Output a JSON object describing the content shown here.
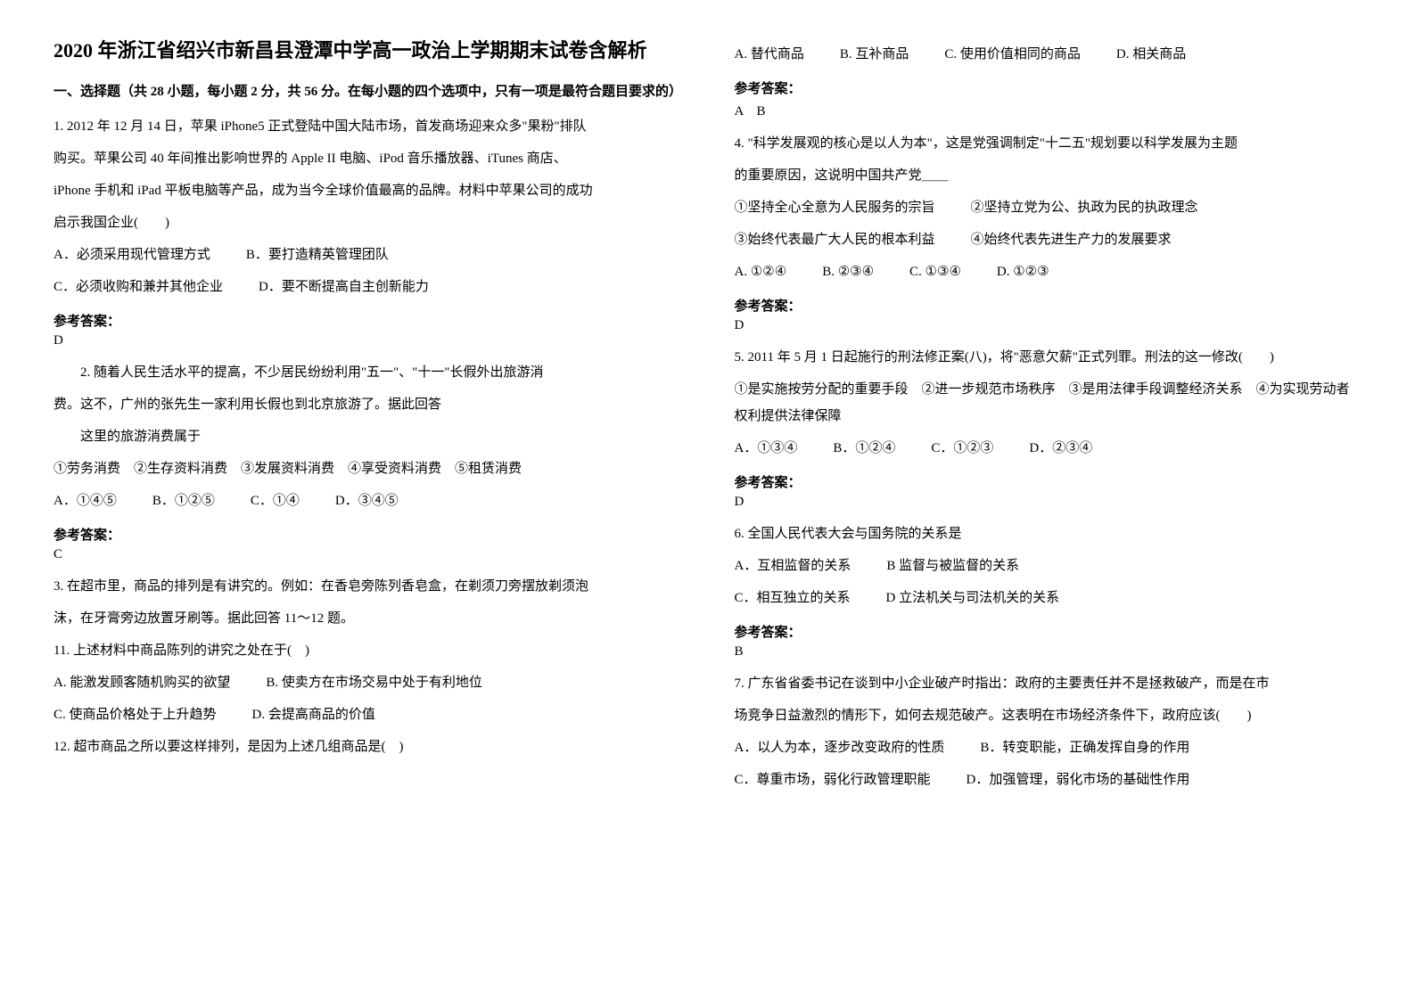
{
  "title": "2020 年浙江省绍兴市新昌县澄潭中学高一政治上学期期末试卷含解析",
  "section1_head": "一、选择题（共 28 小题，每小题 2 分，共 56 分。在每小题的四个选项中，只有一项是最符合题目要求的）",
  "q1": {
    "stem_l1": "1. 2012 年 12 月 14 日，苹果 iPhone5 正式登陆中国大陆市场，首发商场迎来众多\"果粉\"排队",
    "stem_l2": "购买。苹果公司 40 年间推出影响世界的 Apple II 电脑、iPod 音乐播放器、iTunes 商店、",
    "stem_l3": "iPhone 手机和 iPad 平板电脑等产品，成为当今全球价值最高的品牌。材料中苹果公司的成功",
    "stem_l4": "启示我国企业(　　)",
    "optA": "A．必须采用现代管理方式",
    "optB": "B．要打造精英管理团队",
    "optC": "C．必须收购和兼并其他企业",
    "optD": "D．要不断提高自主创新能力",
    "ans_label": "参考答案：",
    "ans": "D"
  },
  "q2": {
    "stem_l1": "2. 随着人民生活水平的提高，不少居民纷纷利用\"五一\"、\"十一\"长假外出旅游消",
    "stem_l2": "费。这不，广州的张先生一家利用长假也到北京旅游了。据此回答",
    "sub": "这里的旅游消费属于",
    "items": "①劳务消费　②生存资料消费　③发展资料消费　④享受资料消费　⑤租赁消费",
    "optA": "A．①④⑤",
    "optB": "B．①②⑤",
    "optC": "C．①④",
    "optD": "D．③④⑤",
    "ans_label": "参考答案：",
    "ans": "C"
  },
  "q3": {
    "stem_l1": "3. 在超市里，商品的排列是有讲究的。例如：在香皂旁陈列香皂盒，在剃须刀旁摆放剃须泡",
    "stem_l2": "沫，在牙膏旁边放置牙刷等。据此回答 11～12 题。",
    "q11_stem": "11. 上述材料中商品陈列的讲究之处在于(　)",
    "q11_A": "A. 能激发顾客随机购买的欲望",
    "q11_B": "B. 使卖方在市场交易中处于有利地位",
    "q11_C": "C. 使商品价格处于上升趋势",
    "q11_D": "D. 会提高商品的价值",
    "q12_stem": "12. 超市商品之所以要这样排列，是因为上述几组商品是(　)",
    "q12_A": "A. 替代商品",
    "q12_B": "B. 互补商品",
    "q12_C": "C. 使用价值相同的商品",
    "q12_D": "D. 相关商品",
    "ans_label": "参考答案：",
    "ans": "A　B"
  },
  "q4": {
    "stem_l1": "4. \"科学发展观的核心是以人为本\"，这是党强调制定\"十二五\"规划要以科学发展为主题",
    "stem_l2": "的重要原因，这说明中国共产党＿＿",
    "i1": "①坚持全心全意为人民服务的宗旨",
    "i2": "②坚持立党为公、执政为民的执政理念",
    "i3": "③始终代表最广大人民的根本利益",
    "i4": "④始终代表先进生产力的发展要求",
    "optA": "A. ①②④",
    "optB": "B. ②③④",
    "optC": "C. ①③④",
    "optD": "D. ①②③",
    "ans_label": "参考答案：",
    "ans": "D"
  },
  "q5": {
    "stem": "5. 2011 年 5 月 1 日起施行的刑法修正案(八)，将\"恶意欠薪\"正式列罪。刑法的这一修改(　　)",
    "items": "①是实施按劳分配的重要手段　②进一步规范市场秩序　③是用法律手段调整经济关系　④为实现劳动者权利提供法律保障",
    "optA": "A．①③④",
    "optB": "B．①②④",
    "optC": "C．①②③",
    "optD": "D．②③④",
    "ans_label": "参考答案：",
    "ans": "D"
  },
  "q6": {
    "stem": "6. 全国人民代表大会与国务院的关系是",
    "optA": "A．互相监督的关系",
    "optB": "B 监督与被监督的关系",
    "optC": "C．相互独立的关系",
    "optD": "D 立法机关与司法机关的关系",
    "ans_label": "参考答案：",
    "ans": "B"
  },
  "q7": {
    "stem_l1": "7. 广东省省委书记在谈到中小企业破产时指出：政府的主要责任并不是拯救破产，而是在市",
    "stem_l2": "场竞争日益激烈的情形下，如何去规范破产。这表明在市场经济条件下，政府应该(　　)",
    "optA": "A．以人为本，逐步改变政府的性质",
    "optB": "B．转变职能，正确发挥自身的作用",
    "optC": "C．尊重市场，弱化行政管理职能",
    "optD": "D．加强管理，弱化市场的基础性作用"
  }
}
